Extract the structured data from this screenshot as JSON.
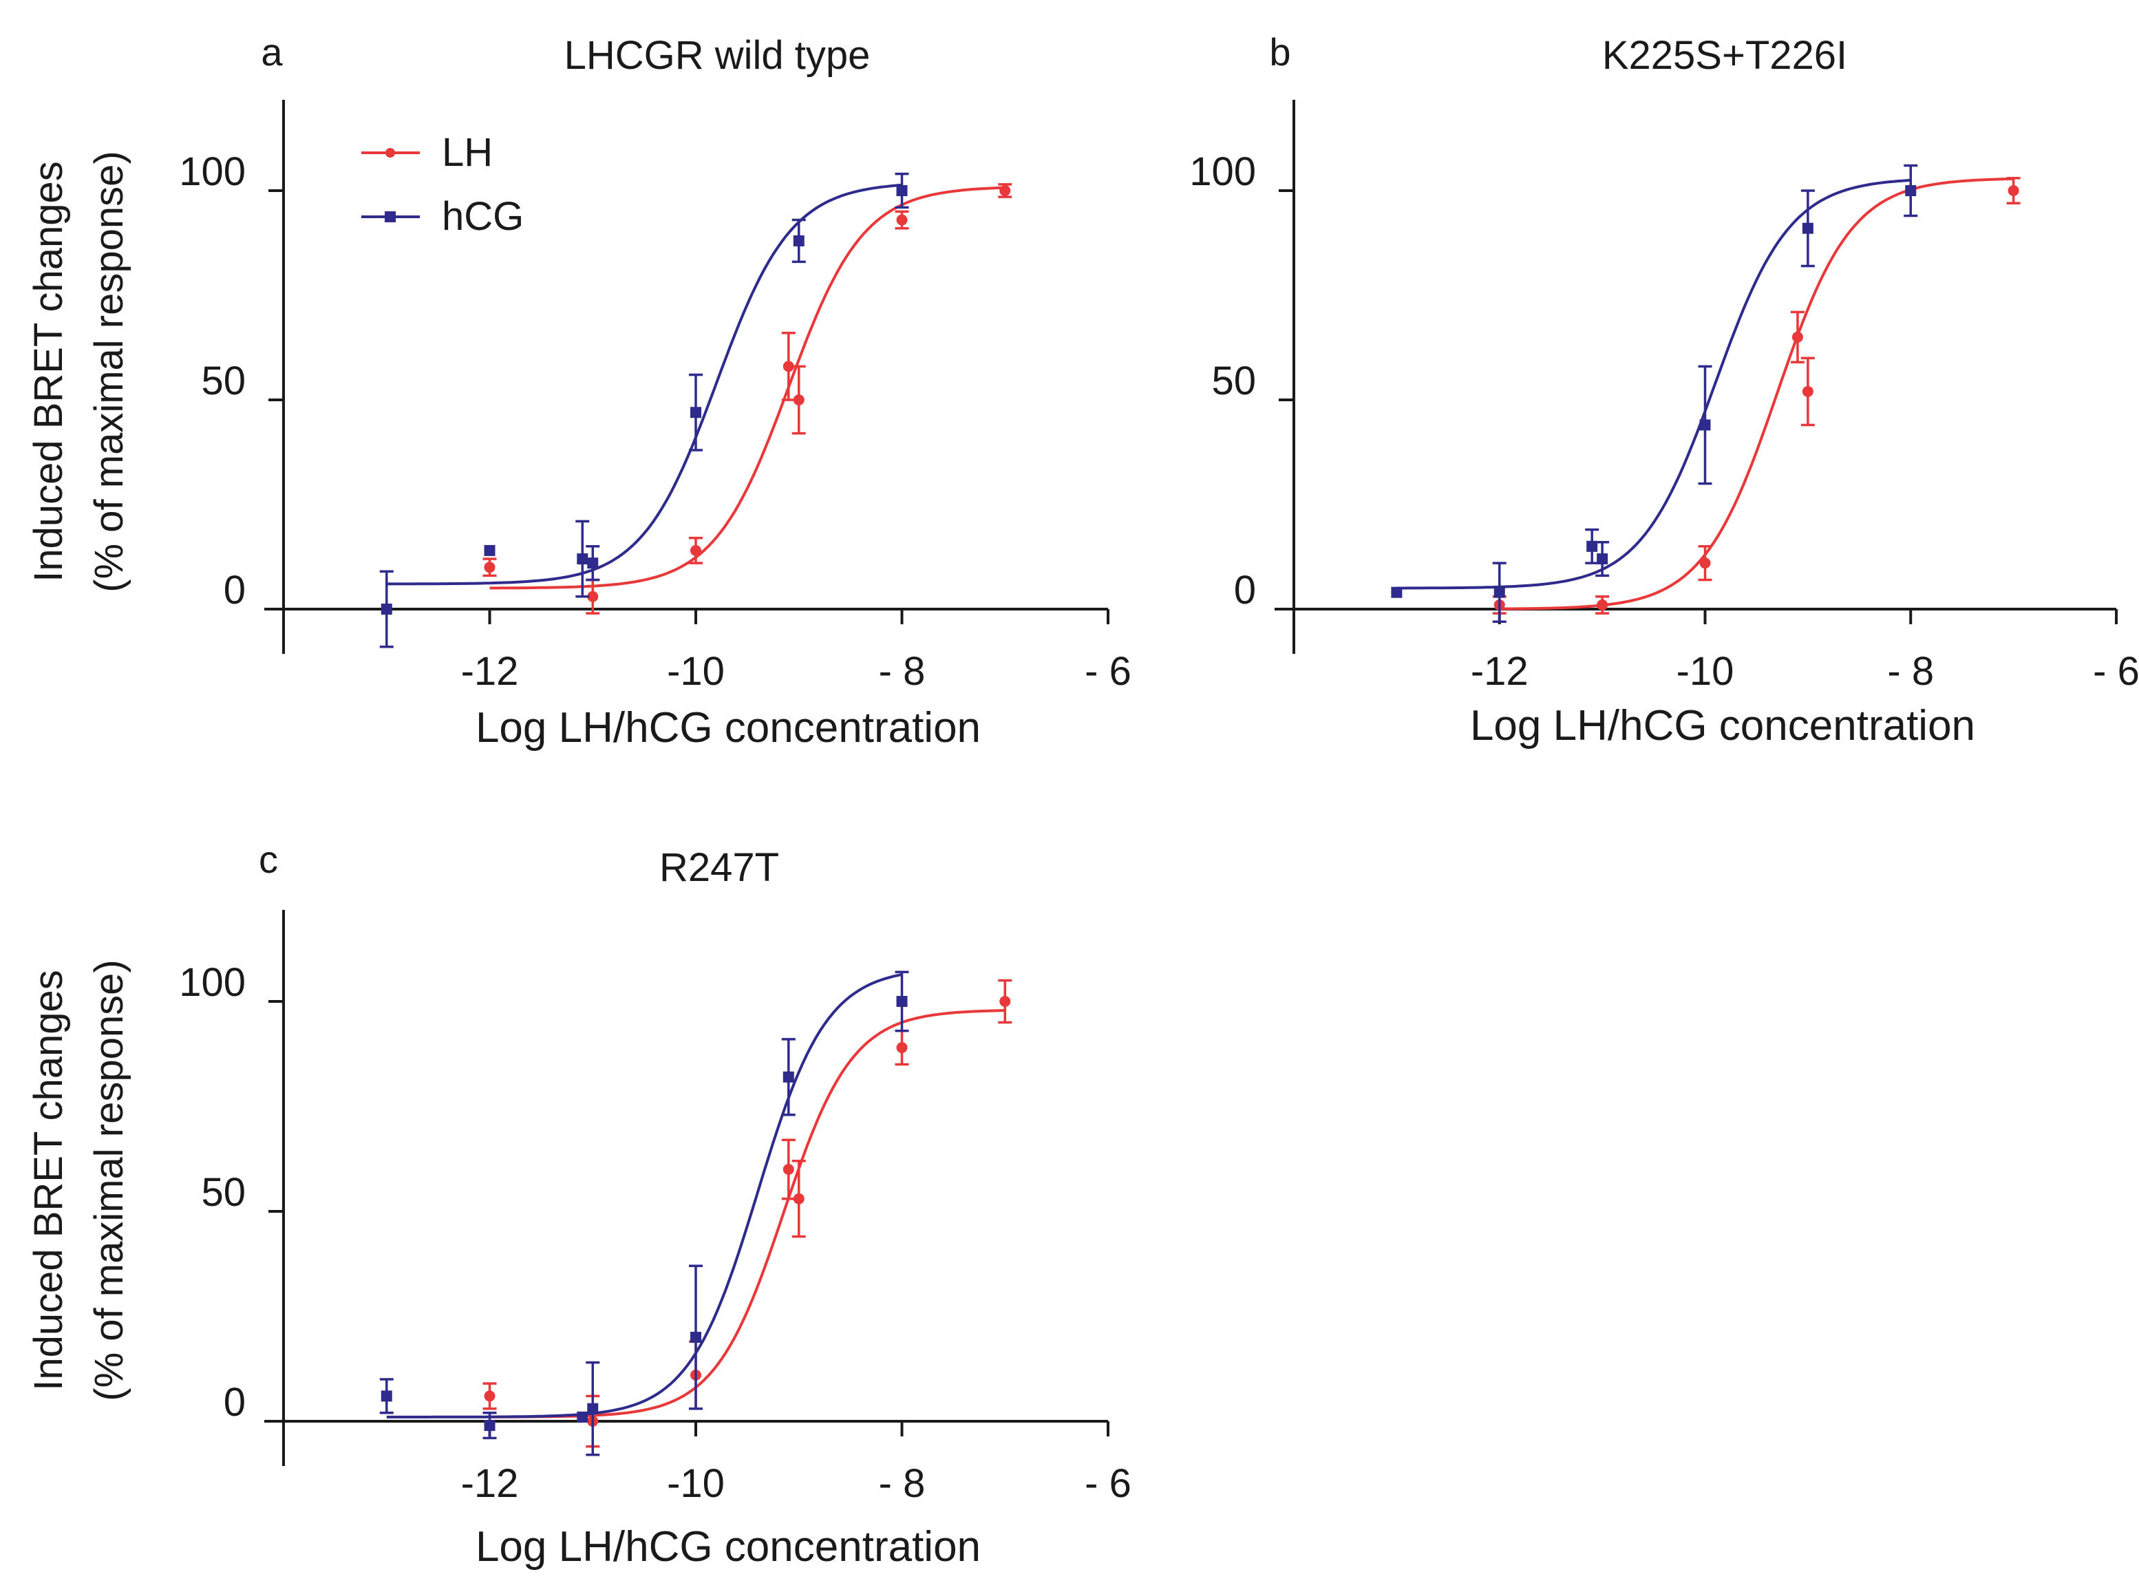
{
  "colors": {
    "LH": "#e8383a",
    "hCG": "#2e2b8c",
    "axis": "#1a1a1a"
  },
  "chart_data": [
    {
      "panel_label": "a",
      "title": "LHCGR wild type",
      "type": "scatter",
      "xlabel": "Log LH/hCG concentration",
      "ylabel_line1": "Induced BRET changes",
      "ylabel_line2": "(% of maximal response)",
      "xlim": [
        -14,
        -6
      ],
      "ylim": [
        -10,
        120
      ],
      "xticks": [
        -12,
        -10,
        -8,
        -6
      ],
      "xtick_labels": [
        "-12",
        "-10",
        "- 8",
        "- 6"
      ],
      "yticks": [
        0,
        50,
        100
      ],
      "ytick_labels": [
        "0",
        "50",
        "100"
      ],
      "legend": {
        "entries": [
          "LH",
          "hCG"
        ],
        "position": "top-left"
      },
      "series": [
        {
          "name": "LH",
          "color": "#e8383a",
          "marker": "circle",
          "x": [
            -12,
            -11,
            -10,
            -9.1,
            -9,
            -8,
            -7
          ],
          "y": [
            10,
            3,
            14,
            58,
            50,
            93,
            100
          ],
          "err": [
            2,
            4,
            3,
            8,
            8,
            2,
            1.5
          ],
          "fit": {
            "bottom": 5,
            "top": 101,
            "logEC50": -9.1,
            "hill": 1.2,
            "xmin": -12,
            "xmax": -7
          }
        },
        {
          "name": "hCG",
          "color": "#2e2b8c",
          "marker": "square",
          "x": [
            -13,
            -12,
            -11.1,
            -11,
            -10,
            -9,
            -8
          ],
          "y": [
            0,
            14,
            12,
            11,
            47,
            88,
            100
          ],
          "err": [
            9,
            0,
            9,
            4,
            9,
            5,
            4
          ],
          "fit": {
            "bottom": 6,
            "top": 102,
            "logEC50": -9.8,
            "hill": 1.2,
            "xmin": -13,
            "xmax": -8
          }
        }
      ]
    },
    {
      "panel_label": "b",
      "title": "K225S+T226I",
      "type": "scatter",
      "xlabel": "Log LH/hCG concentration",
      "xlim": [
        -14,
        -6
      ],
      "ylim": [
        -10,
        120
      ],
      "xticks": [
        -12,
        -10,
        -8,
        -6
      ],
      "xtick_labels": [
        "-12",
        "-10",
        "- 8",
        "- 6"
      ],
      "yticks": [
        0,
        50,
        100
      ],
      "ytick_labels": [
        "0",
        "50",
        "100"
      ],
      "series": [
        {
          "name": "LH",
          "color": "#e8383a",
          "marker": "circle",
          "x": [
            -12,
            -11,
            -10,
            -9.1,
            -9,
            -7
          ],
          "y": [
            1,
            1,
            11,
            65,
            52,
            100
          ],
          "err": [
            2,
            2,
            4,
            6,
            8,
            3
          ],
          "fit": {
            "bottom": 0,
            "top": 103,
            "logEC50": -9.3,
            "hill": 1.2,
            "xmin": -12,
            "xmax": -7
          }
        },
        {
          "name": "hCG",
          "color": "#2e2b8c",
          "marker": "square",
          "x": [
            -13,
            -12,
            -11.1,
            -11,
            -10,
            -9,
            -8
          ],
          "y": [
            4,
            4,
            15,
            12,
            44,
            91,
            100
          ],
          "err": [
            0,
            7,
            4,
            4,
            14,
            9,
            6
          ],
          "fit": {
            "bottom": 5,
            "top": 103,
            "logEC50": -9.9,
            "hill": 1.2,
            "xmin": -13,
            "xmax": -8
          }
        }
      ]
    },
    {
      "panel_label": "c",
      "title": "R247T",
      "type": "scatter",
      "xlabel": "Log LH/hCG concentration",
      "ylabel_line1": "Induced BRET changes",
      "ylabel_line2": "(% of maximal response)",
      "xlim": [
        -14,
        -6
      ],
      "ylim": [
        -10,
        120
      ],
      "xticks": [
        -12,
        -10,
        -8,
        -6
      ],
      "xtick_labels": [
        "-12",
        "-10",
        "- 8",
        "- 6"
      ],
      "yticks": [
        0,
        50,
        100
      ],
      "ytick_labels": [
        "0",
        "50",
        "100"
      ],
      "series": [
        {
          "name": "LH",
          "color": "#e8383a",
          "marker": "circle",
          "x": [
            -12,
            -11,
            -10,
            -9.1,
            -9,
            -8,
            -7
          ],
          "y": [
            6,
            0,
            11,
            60,
            53,
            89,
            100
          ],
          "err": [
            3,
            6,
            8,
            7,
            9,
            4,
            5
          ],
          "fit": {
            "bottom": 1,
            "top": 98,
            "logEC50": -9.15,
            "hill": 1.3,
            "xmin": -12,
            "xmax": -7
          }
        },
        {
          "name": "hCG",
          "color": "#2e2b8c",
          "marker": "square",
          "x": [
            -13,
            -12,
            -11.1,
            -11,
            -10,
            -9.1,
            -8
          ],
          "y": [
            6,
            -1,
            1,
            3,
            20,
            82,
            100
          ],
          "err": [
            4,
            3,
            0,
            11,
            17,
            9,
            7
          ],
          "fit": {
            "bottom": 1,
            "top": 108,
            "logEC50": -9.4,
            "hill": 1.3,
            "xmin": -13,
            "xmax": -8
          }
        }
      ]
    }
  ]
}
